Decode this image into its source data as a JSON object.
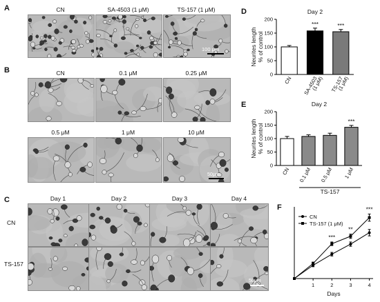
{
  "panelA": {
    "letter": "A",
    "images": [
      {
        "caption": "CN",
        "density": 1.0
      },
      {
        "caption": "SA-4503 (1 μM)",
        "density": 0.9
      },
      {
        "caption": "TS-157 (1 μM)",
        "density": 0.6
      }
    ],
    "scalebar": "100 μm"
  },
  "panelB": {
    "letter": "B",
    "images": [
      {
        "caption": "CN"
      },
      {
        "caption": "0.1 μM"
      },
      {
        "caption": "0.25 μM"
      },
      {
        "caption": "0.5 μM"
      },
      {
        "caption": "1 μM"
      },
      {
        "caption": "10 μM"
      }
    ],
    "scalebar": "50μm"
  },
  "panelC": {
    "letter": "C",
    "day_labels": [
      "Day 1",
      "Day 2",
      "Day 3",
      "Day 4"
    ],
    "row_labels": [
      "CN",
      "TS-157"
    ],
    "scalebar": "50μm"
  },
  "chart_data": [
    {
      "panel": "D",
      "type": "bar",
      "title": "Day 2",
      "ylabel": "Neurites length\n% of control",
      "ylim": [
        0,
        200
      ],
      "yticks": [
        0,
        50,
        100,
        150,
        200
      ],
      "categories": [
        "CN",
        "SA-4503\n(1 μM)",
        "TS-157\n(1 μM)"
      ],
      "values": [
        100,
        158,
        155
      ],
      "errors": [
        5,
        10,
        8
      ],
      "bar_colors": [
        "#ffffff",
        "#000000",
        "#7a7a7a"
      ],
      "annotations": [
        "",
        "***",
        "***"
      ]
    },
    {
      "panel": "E",
      "type": "bar",
      "title": "Day 2",
      "ylabel": "Neurites length\n% of control",
      "ylim": [
        0,
        200
      ],
      "yticks": [
        0,
        50,
        100,
        150,
        200
      ],
      "categories": [
        "CN",
        "0.1 μM",
        "0.5 μM",
        "1 μM"
      ],
      "values": [
        100,
        108,
        112,
        142
      ],
      "errors": [
        8,
        6,
        8,
        7
      ],
      "bar_colors": [
        "#ffffff",
        "#8a8a8a",
        "#8a8a8a",
        "#8a8a8a"
      ],
      "annotations": [
        "",
        "",
        "",
        "***"
      ],
      "group_label": "TS-157"
    },
    {
      "panel": "F",
      "type": "line",
      "xlabel": "Days",
      "x": [
        0,
        1,
        2,
        3,
        4
      ],
      "xticks": [
        1,
        2,
        3,
        4
      ],
      "ylim": [
        0,
        200
      ],
      "series": [
        {
          "name": "CN",
          "values": [
            0,
            37,
            68,
            96,
            128
          ],
          "errors": [
            0,
            4,
            5,
            6,
            9
          ],
          "marker": "circle"
        },
        {
          "name": "TS-157 (1 μM)",
          "values": [
            0,
            42,
            97,
            118,
            170
          ],
          "errors": [
            0,
            4,
            5,
            6,
            10
          ],
          "marker": "square"
        }
      ],
      "annotations": [
        {
          "x": 2,
          "label": "***"
        },
        {
          "x": 3,
          "label": "**"
        },
        {
          "x": 4,
          "label": "***"
        }
      ],
      "legend": "top-left"
    }
  ]
}
